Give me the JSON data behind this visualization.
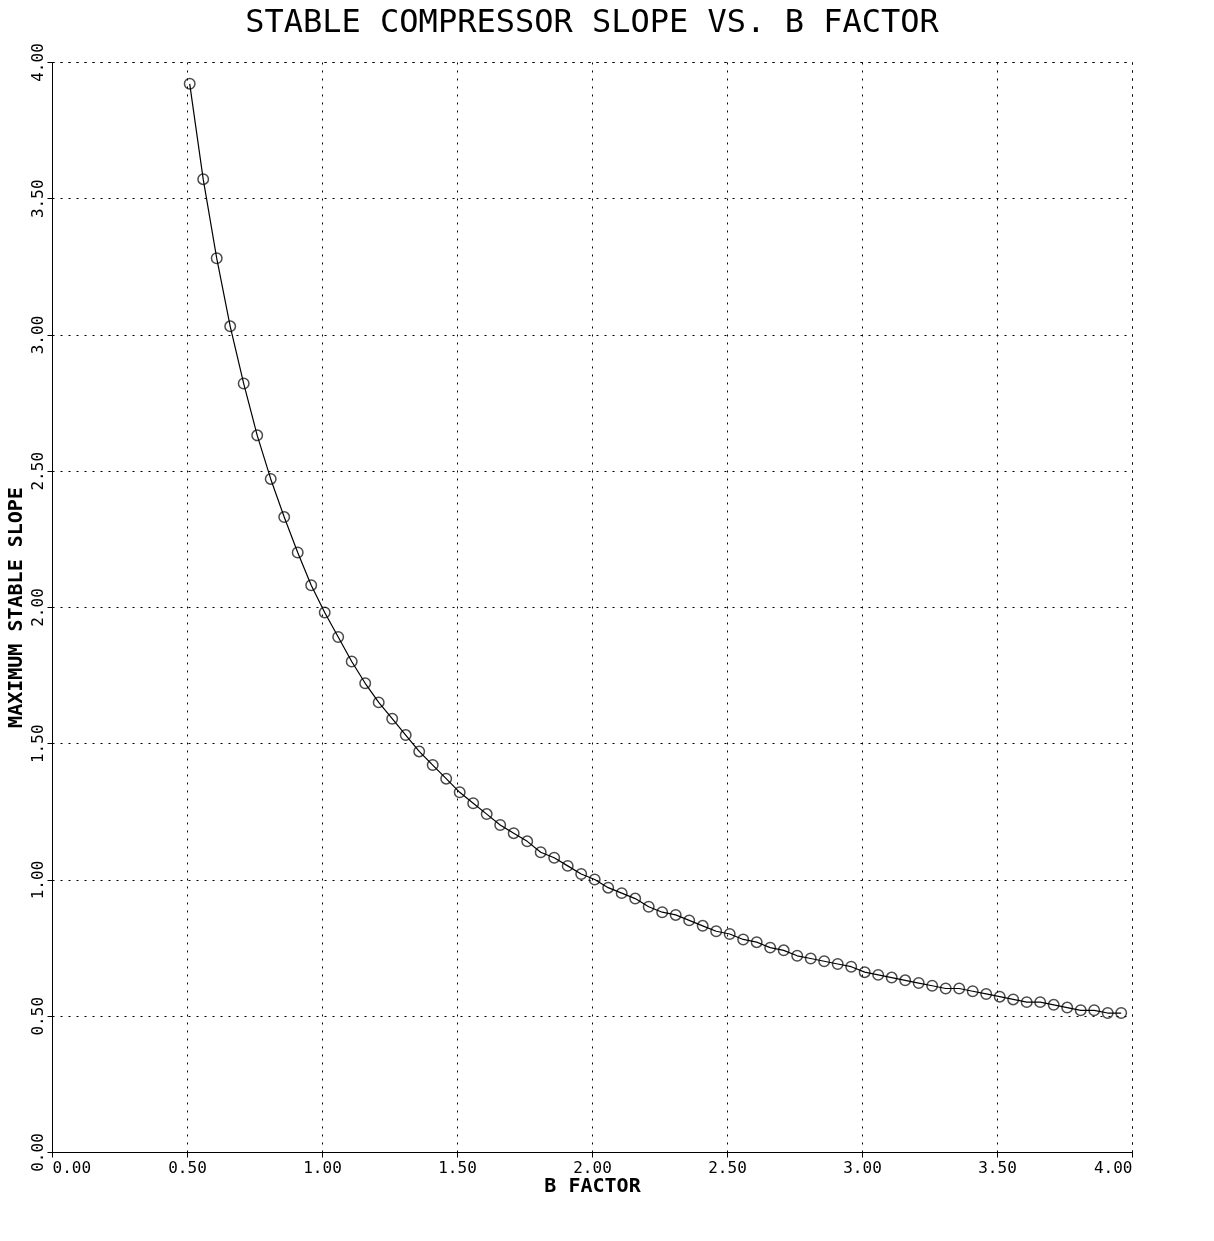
{
  "chart_data": {
    "type": "line",
    "title": "STABLE COMPRESSOR SLOPE VS. B FACTOR",
    "xlabel": "B FACTOR",
    "ylabel": "MAXIMUM STABLE SLOPE",
    "x": [
      0.51,
      0.56,
      0.61,
      0.66,
      0.71,
      0.76,
      0.81,
      0.86,
      0.91,
      0.96,
      1.01,
      1.06,
      1.11,
      1.16,
      1.21,
      1.26,
      1.31,
      1.36,
      1.41,
      1.46,
      1.51,
      1.56,
      1.61,
      1.66,
      1.71,
      1.76,
      1.81,
      1.86,
      1.91,
      1.96,
      2.01,
      2.06,
      2.11,
      2.16,
      2.21,
      2.26,
      2.31,
      2.36,
      2.41,
      2.46,
      2.51,
      2.56,
      2.61,
      2.66,
      2.71,
      2.76,
      2.81,
      2.86,
      2.91,
      2.96,
      3.01,
      3.06,
      3.11,
      3.16,
      3.21,
      3.26,
      3.31,
      3.36,
      3.41,
      3.46,
      3.51,
      3.56,
      3.61,
      3.66,
      3.71,
      3.76,
      3.81,
      3.86,
      3.91,
      3.96
    ],
    "series": [
      {
        "color": "#000000",
        "values": [
          3.92,
          3.57,
          3.28,
          3.03,
          2.82,
          2.63,
          2.47,
          2.33,
          2.2,
          2.08,
          1.98,
          1.89,
          1.8,
          1.72,
          1.65,
          1.59,
          1.53,
          1.47,
          1.42,
          1.37,
          1.32,
          1.28,
          1.24,
          1.2,
          1.17,
          1.14,
          1.1,
          1.08,
          1.05,
          1.02,
          1.0,
          0.97,
          0.95,
          0.93,
          0.9,
          0.88,
          0.87,
          0.85,
          0.83,
          0.81,
          0.8,
          0.78,
          0.77,
          0.75,
          0.74,
          0.72,
          0.71,
          0.7,
          0.69,
          0.68,
          0.66,
          0.65,
          0.64,
          0.63,
          0.62,
          0.61,
          0.6,
          0.6,
          0.59,
          0.58,
          0.57,
          0.56,
          0.55,
          0.55,
          0.54,
          0.53,
          0.52,
          0.52,
          0.51,
          0.51
        ]
      }
    ],
    "xlim": [
      0,
      4
    ],
    "ylim": [
      0,
      4
    ],
    "xticks": [
      {
        "value": 0,
        "label": "0.00"
      },
      {
        "value": 0.5,
        "label": "0.50"
      },
      {
        "value": 1,
        "label": "1.00"
      },
      {
        "value": 1.5,
        "label": "1.50"
      },
      {
        "value": 2,
        "label": "2.00"
      },
      {
        "value": 2.5,
        "label": "2.50"
      },
      {
        "value": 3,
        "label": "3.00"
      },
      {
        "value": 3.5,
        "label": "3.50"
      },
      {
        "value": 4,
        "label": "4.00"
      }
    ],
    "yticks": [
      {
        "value": 0,
        "label": "0.00"
      },
      {
        "value": 0.5,
        "label": "0.50"
      },
      {
        "value": 1,
        "label": "1.00"
      },
      {
        "value": 1.5,
        "label": "1.50"
      },
      {
        "value": 2,
        "label": "2.00"
      },
      {
        "value": 2.5,
        "label": "2.50"
      },
      {
        "value": 3,
        "label": "3.00"
      },
      {
        "value": 3.5,
        "label": "3.50"
      },
      {
        "value": 4,
        "label": "4.00"
      }
    ],
    "grid": true,
    "marker": "circle",
    "line_style": "solid"
  }
}
